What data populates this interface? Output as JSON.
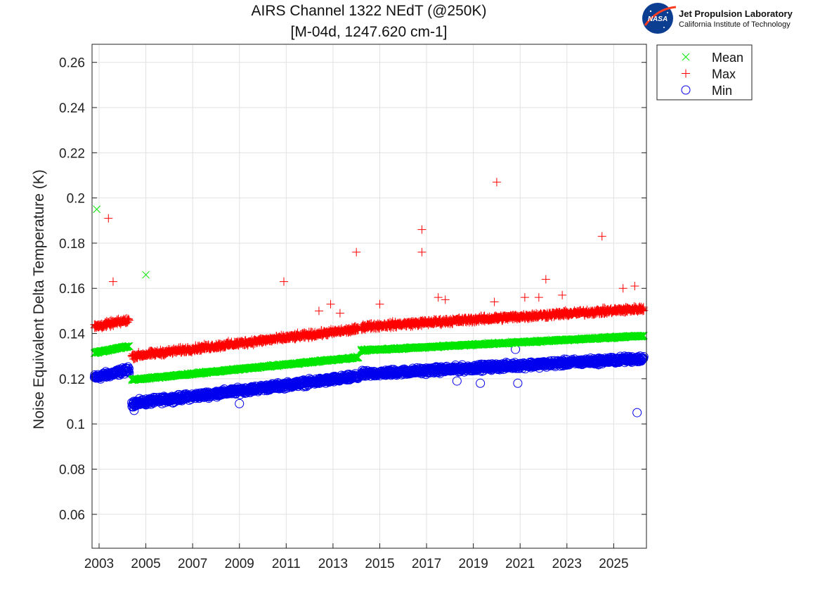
{
  "chart_data": {
    "type": "scatter",
    "title": "AIRS Channel 1322 NEdT (@250K)",
    "subtitle": "[M-04d, 1247.620 cm-1]",
    "xlabel": "",
    "ylabel": "Noise Equivalent Delta Temperature (K)",
    "xlim": [
      2002.7,
      2026.4
    ],
    "ylim": [
      0.045,
      0.268
    ],
    "x_ticks": [
      2003,
      2005,
      2007,
      2009,
      2011,
      2013,
      2015,
      2017,
      2019,
      2021,
      2023,
      2025
    ],
    "x_tick_labels": [
      "2003",
      "2005",
      "2007",
      "2009",
      "2011",
      "2013",
      "2015",
      "2017",
      "2019",
      "2021",
      "2023",
      "2025"
    ],
    "y_ticks": [
      0.06,
      0.08,
      0.1,
      0.12,
      0.14,
      0.16,
      0.18,
      0.2,
      0.22,
      0.24,
      0.26
    ],
    "y_tick_labels": [
      "0.06",
      "0.08",
      "0.1",
      "0.12",
      "0.14",
      "0.16",
      "0.18",
      "0.2",
      "0.22",
      "0.24",
      "0.26"
    ],
    "grid": true,
    "legend_position": "outside-top-right",
    "series": [
      {
        "name": "Mean",
        "marker": "x",
        "color": "#00e600",
        "segments": [
          {
            "x_start": 2002.8,
            "x_end": 2004.3,
            "y_start": 0.1315,
            "y_end": 0.1345
          },
          {
            "x_start": 2004.4,
            "x_end": 2014.1,
            "y_start": 0.1195,
            "y_end": 0.1295
          },
          {
            "x_start": 2014.2,
            "x_end": 2026.3,
            "y_start": 0.1325,
            "y_end": 0.139
          }
        ],
        "outliers": [
          [
            2002.9,
            0.195
          ],
          [
            2005.0,
            0.166
          ]
        ]
      },
      {
        "name": "Max",
        "marker": "+",
        "color": "#ff0000",
        "segments": [
          {
            "x_start": 2002.8,
            "x_end": 2004.3,
            "y_start": 0.143,
            "y_end": 0.146
          },
          {
            "x_start": 2004.4,
            "x_end": 2014.1,
            "y_start": 0.13,
            "y_end": 0.142
          },
          {
            "x_start": 2014.2,
            "x_end": 2026.3,
            "y_start": 0.143,
            "y_end": 0.151
          }
        ],
        "outliers": [
          [
            2003.4,
            0.191
          ],
          [
            2003.6,
            0.163
          ],
          [
            2010.9,
            0.163
          ],
          [
            2012.4,
            0.15
          ],
          [
            2012.9,
            0.153
          ],
          [
            2013.3,
            0.149
          ],
          [
            2014.0,
            0.176
          ],
          [
            2015.0,
            0.153
          ],
          [
            2016.8,
            0.186
          ],
          [
            2016.8,
            0.176
          ],
          [
            2017.5,
            0.156
          ],
          [
            2017.8,
            0.155
          ],
          [
            2019.9,
            0.154
          ],
          [
            2020.0,
            0.207
          ],
          [
            2021.2,
            0.156
          ],
          [
            2021.8,
            0.156
          ],
          [
            2022.1,
            0.164
          ],
          [
            2022.8,
            0.157
          ],
          [
            2024.5,
            0.183
          ],
          [
            2025.4,
            0.16
          ],
          [
            2025.9,
            0.161
          ]
        ]
      },
      {
        "name": "Min",
        "marker": "o",
        "color": "#0000ee",
        "segments": [
          {
            "x_start": 2002.8,
            "x_end": 2004.3,
            "y_start": 0.1205,
            "y_end": 0.124
          },
          {
            "x_start": 2004.4,
            "x_end": 2014.1,
            "y_start": 0.109,
            "y_end": 0.121
          },
          {
            "x_start": 2014.2,
            "x_end": 2026.3,
            "y_start": 0.122,
            "y_end": 0.129
          }
        ],
        "outliers": [
          [
            2004.5,
            0.106
          ],
          [
            2009.0,
            0.109
          ],
          [
            2018.3,
            0.119
          ],
          [
            2019.3,
            0.118
          ],
          [
            2020.8,
            0.133
          ],
          [
            2020.9,
            0.118
          ],
          [
            2026.0,
            0.105
          ]
        ]
      }
    ]
  },
  "logo": {
    "nasa": "NASA",
    "org_line1": "Jet Propulsion Laboratory",
    "org_line2": "California Institute of Technology",
    "colors": {
      "nasa_blue": "#0b3d91",
      "nasa_red": "#fc3d21"
    }
  }
}
